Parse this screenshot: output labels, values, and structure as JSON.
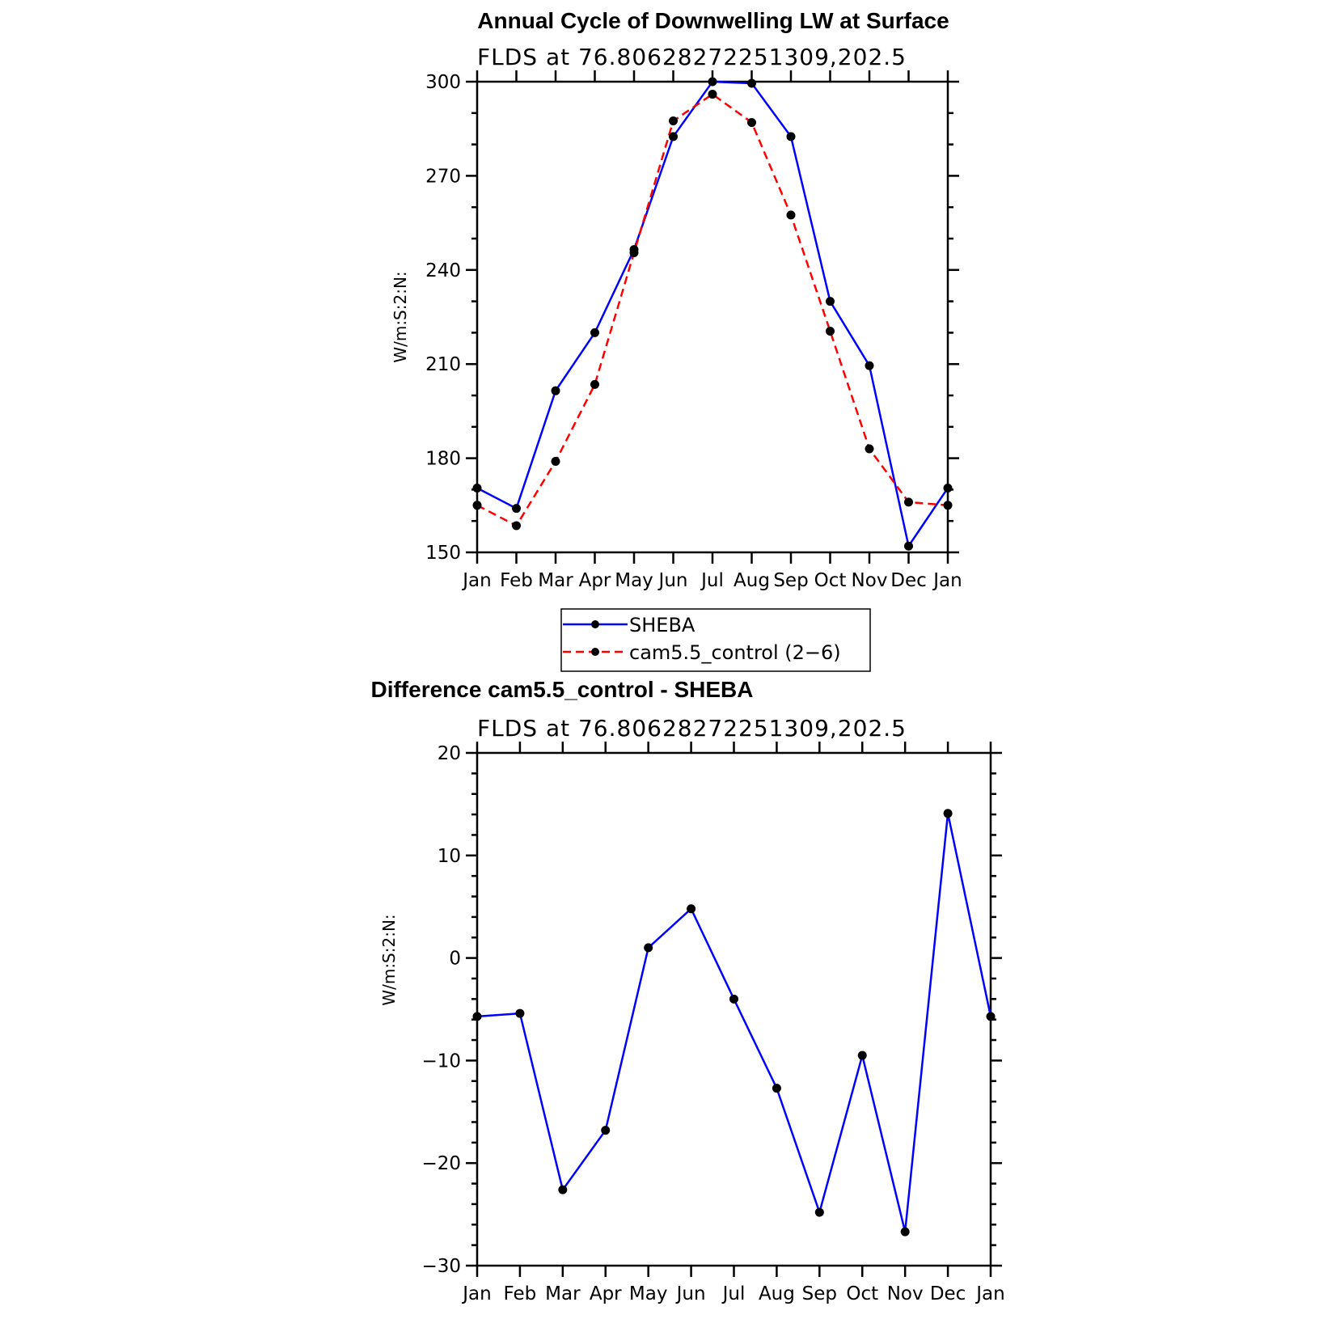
{
  "chart_data": [
    {
      "type": "line",
      "title": "Annual Cycle of Downwelling LW at Surface",
      "subtitle": "FLDS  at  76.80628272251309,202.5",
      "ylabel": "W/m:S:2:N:",
      "xlabel": "",
      "categories": [
        "Jan",
        "Feb",
        "Mar",
        "Apr",
        "May",
        "Jun",
        "Jul",
        "Aug",
        "Sep",
        "Oct",
        "Nov",
        "Dec",
        "Jan"
      ],
      "ylim": [
        150,
        300
      ],
      "yticks": [
        "150",
        "180",
        "210",
        "240",
        "270",
        "300"
      ],
      "series": [
        {
          "name": "SHEBA",
          "color": "#0000ff",
          "dash": "solid",
          "values": [
            170.5,
            164,
            201.5,
            220,
            246.5,
            282.5,
            300,
            299.5,
            282.5,
            230,
            209.5,
            152,
            170.5
          ]
        },
        {
          "name": "cam5.5_control (2−6)",
          "color": "#ff0000",
          "dash": "dashed",
          "values": [
            165,
            158.5,
            179,
            203.5,
            245.5,
            287.5,
            296,
            287,
            257.5,
            220.5,
            183,
            166,
            165
          ]
        }
      ],
      "legend": "below"
    },
    {
      "type": "line",
      "title": "Difference cam5.5_control - SHEBA",
      "subtitle": "FLDS  at  76.80628272251309,202.5",
      "ylabel": "W/m:S:2:N:",
      "xlabel": "",
      "categories": [
        "Jan",
        "Feb",
        "Mar",
        "Apr",
        "May",
        "Jun",
        "Jul",
        "Aug",
        "Sep",
        "Oct",
        "Nov",
        "Dec",
        "Jan"
      ],
      "ylim": [
        -30,
        20
      ],
      "yticks": [
        "−30",
        "−20",
        "−10",
        "0",
        "10",
        "20"
      ],
      "series": [
        {
          "color": "#0000ff",
          "dash": "solid",
          "values": [
            -5.7,
            -5.4,
            -22.6,
            -16.8,
            1.0,
            4.8,
            -4.0,
            -12.7,
            -24.8,
            -9.5,
            -26.7,
            14.1,
            -5.7
          ]
        }
      ]
    }
  ]
}
